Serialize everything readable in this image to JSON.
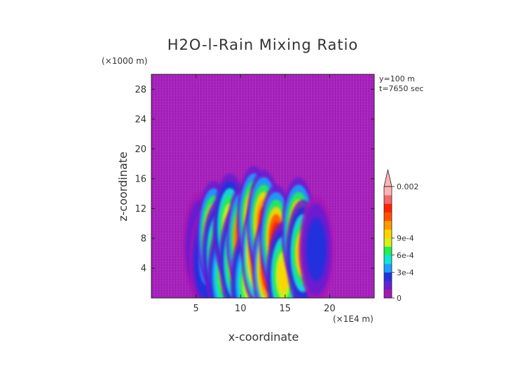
{
  "chart_data": {
    "type": "heatmap",
    "title": "H2O-l-Rain Mixing Ratio",
    "xlabel": "x-coordinate",
    "ylabel": "z-coordinate",
    "x_unit": "(×1E4 m)",
    "y_unit": "(×1000 m)",
    "annotations": [
      "y=100 m",
      "t=7650 sec"
    ],
    "xlim": [
      0,
      25
    ],
    "ylim": [
      0,
      30
    ],
    "xticks": [
      5,
      10,
      15,
      20
    ],
    "yticks": [
      4,
      8,
      12,
      16,
      20,
      24,
      28
    ],
    "xtick_labels": [
      "5",
      "10",
      "15",
      "20"
    ],
    "ytick_labels": [
      "4",
      "8",
      "12",
      "16",
      "20",
      "24",
      "28"
    ],
    "background_value": 0,
    "colorbar": {
      "position": "right",
      "min": 0,
      "max": 0.002,
      "extend": "max",
      "tick_values": [
        0,
        0.0003,
        0.0006,
        0.0009,
        0.002
      ],
      "tick_labels": [
        "0",
        "3e-4",
        "6e-4",
        "9e-4",
        "0.002"
      ],
      "colors": [
        "#a617b6",
        "#6a1fd0",
        "#2233dd",
        "#1aa0ff",
        "#13e4d6",
        "#22ee55",
        "#d8f016",
        "#ffd400",
        "#ff9a00",
        "#ff5200",
        "#ff2200",
        "#f26a6a",
        "#ffb3b3"
      ]
    },
    "cells": [
      {
        "x": 5.5,
        "z": 7.0,
        "value": 0.0003
      },
      {
        "x": 6.2,
        "z": 5.0,
        "value": 0.0005
      },
      {
        "x": 7.0,
        "z": 8.5,
        "value": 0.0015
      },
      {
        "x": 7.6,
        "z": 6.0,
        "value": 0.0012
      },
      {
        "x": 8.2,
        "z": 3.0,
        "value": 0.001
      },
      {
        "x": 8.8,
        "z": 9.5,
        "value": 0.0012
      },
      {
        "x": 9.5,
        "z": 5.0,
        "value": 0.0013
      },
      {
        "x": 10.3,
        "z": 8.0,
        "value": 0.0018
      },
      {
        "x": 10.8,
        "z": 2.0,
        "value": 0.001
      },
      {
        "x": 11.5,
        "z": 10.5,
        "value": 0.0016
      },
      {
        "x": 12.0,
        "z": 6.0,
        "value": 0.002
      },
      {
        "x": 12.6,
        "z": 10.0,
        "value": 0.0016
      },
      {
        "x": 13.2,
        "z": 4.0,
        "value": 0.0019
      },
      {
        "x": 14.0,
        "z": 8.0,
        "value": 0.0017
      },
      {
        "x": 14.8,
        "z": 3.0,
        "value": 0.0012
      },
      {
        "x": 16.5,
        "z": 9.0,
        "value": 0.0016
      },
      {
        "x": 17.0,
        "z": 6.0,
        "value": 0.0013
      },
      {
        "x": 18.5,
        "z": 6.5,
        "value": 0.0004
      }
    ]
  }
}
